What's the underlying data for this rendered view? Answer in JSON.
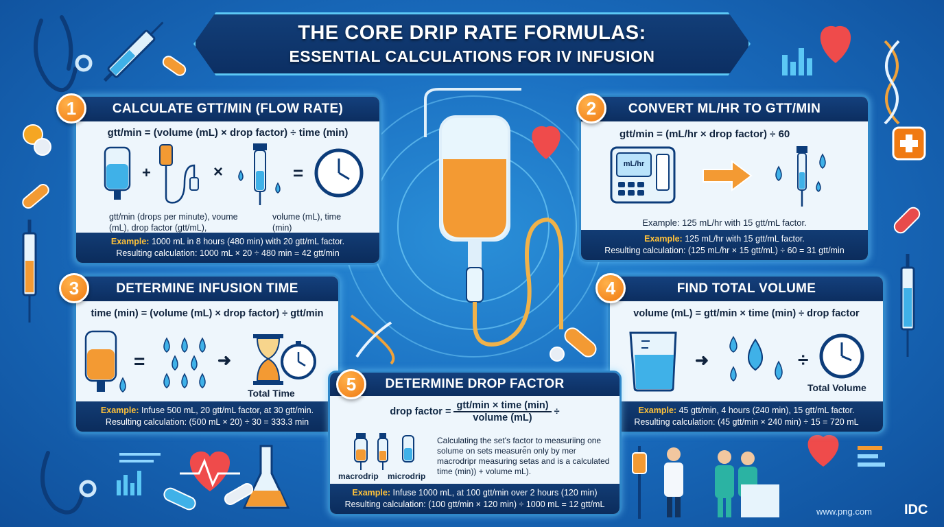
{
  "title": {
    "line1": "THE CORE DRIP RATE FORMULAS:",
    "line2": "ESSENTIAL CALCULATIONS FOR IV INFUSION"
  },
  "sections": [
    {
      "number": "1",
      "heading": "CALCULATE GTT/MIN (FLOW RATE)",
      "formula": "gtt/min = (volume (mL) × drop factor) ÷ time (min)",
      "symbols": [
        "+",
        "×",
        "="
      ],
      "note_left": "gtt/min (drops per minute), voume (mL), drop factor (gtt/mL),",
      "note_right": "volume (mL), time (min)",
      "example_label": "Example:",
      "example_text": "1000 mL in 8 hours (480 min) with 20 gtt/mL factor.",
      "result": "Resulting calculation: 1000 mL × 20 ÷ 480 min = 42 gtt/min"
    },
    {
      "number": "2",
      "heading": "CONVERT ML/HR TO GTT/MIN",
      "formula": "gtt/min = (mL/hr × drop factor) ÷ 60",
      "pump_label": "mL/hr",
      "note": "Example: 125 mL/hr with 15 gtt/mL factor.",
      "example_label": "Example:",
      "example_text": "125 mL/hr with 15 gtt/mL factor.",
      "result": "Resulting calculation: (125 mL/hr × 15 gtt/mL) ÷ 60 = 31 gtt/min"
    },
    {
      "number": "3",
      "heading": "DETERMINE INFUSION TIME",
      "formula": "time (min) = (volume (mL) × drop factor) ÷ gtt/min",
      "symbols": [
        "=",
        "➜"
      ],
      "caption": "Total Time",
      "example_label": "Example:",
      "example_text": "Infuse 500 mL, 20 gtt/mL factor, at 30 gtt/min.",
      "result": "Resulting calculation: (500 mL × 20) ÷ 30 = 333.3 min"
    },
    {
      "number": "4",
      "heading": "FIND TOTAL VOLUME",
      "formula": "volume (mL) = gtt/min × time (min) ÷ drop factor",
      "symbols": [
        "➜",
        "÷"
      ],
      "caption": "Total Volume",
      "example_label": "Example:",
      "example_text": "45 gtt/min, 4 hours (240 min), 15 gtt/mL factor.",
      "result": "Resulting calculation: (45 gtt/min × 240 min) ÷ 15 = 720 mL"
    },
    {
      "number": "5",
      "heading": "DETERMINE DROP FACTOR",
      "formula_left": "drop factor =",
      "formula_num": "gtt/min × time (min)",
      "formula_den": "volume (mL)",
      "formula_op": "÷",
      "macro_label": "macrodrip",
      "micro_label": "microdrip",
      "note": "Calculating the set's factor to measuriing one solume on sets measure̋n only by mer macrodripr measuring setas and is a calculated time (min)) + volume mL).",
      "example_label": "Example:",
      "example_text": "Infuse 1000 mL, at 100 gtt/min over 2 hours (120 min)",
      "result": "Resulting calculation: (100 gtt/min × 120 min) ÷ 1000 mL = 12 gtt/mL"
    }
  ],
  "footer": {
    "site": "www.png.com",
    "logo": "IDC"
  },
  "colors": {
    "background": "#1a6ec0",
    "banner": "#0c2f63",
    "accent_orange": "#f07a12",
    "card": "#eef6fc",
    "example_label": "#ffc23a"
  }
}
